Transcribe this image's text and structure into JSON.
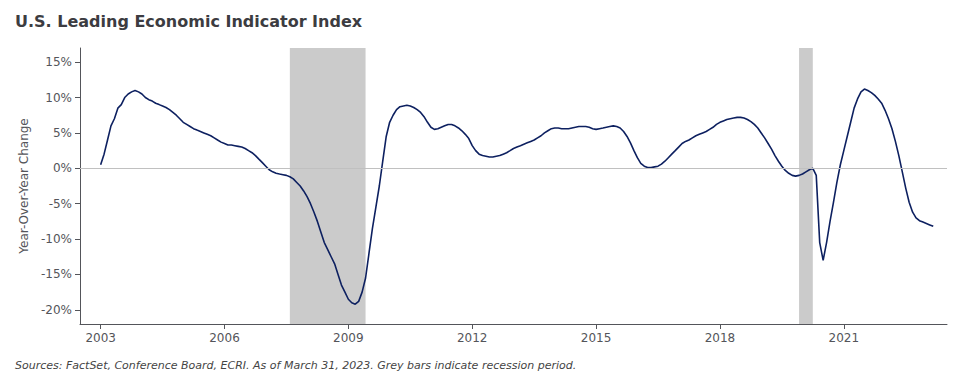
{
  "chart_data": {
    "type": "line",
    "title": "U.S. Leading Economic Indicator Index",
    "ylabel": "Year-Over-Year Change",
    "source": "Sources: FactSet, Conference Board, ECRI. As of March 31, 2023. Grey bars indicate recession period.",
    "color": "#0d2060",
    "grid": false,
    "xlim": [
      2002.5,
      2023.5
    ],
    "xticks": [
      2003,
      2006,
      2009,
      2012,
      2015,
      2018,
      2021
    ],
    "ylim": [
      -0.22,
      0.17
    ],
    "yticks": [
      {
        "value": -0.2,
        "label": "-20%"
      },
      {
        "value": -0.15,
        "label": "-15%"
      },
      {
        "value": -0.1,
        "label": "-10%"
      },
      {
        "value": -0.05,
        "label": "-5%"
      },
      {
        "value": 0.0,
        "label": "0%"
      },
      {
        "value": 0.05,
        "label": "5%"
      },
      {
        "value": 0.1,
        "label": "10%"
      },
      {
        "value": 0.15,
        "label": "15%"
      }
    ],
    "recession_periods": [
      [
        2007.583,
        2009.417
      ],
      [
        2019.917,
        2020.25
      ]
    ],
    "recession_color": "#a0a0a0",
    "reference_line": {
      "value": 0,
      "color": "#c0c0c0"
    },
    "x": [
      2003.0,
      2003.083,
      2003.167,
      2003.25,
      2003.333,
      2003.417,
      2003.5,
      2003.583,
      2003.667,
      2003.75,
      2003.833,
      2003.917,
      2004.0,
      2004.083,
      2004.167,
      2004.25,
      2004.333,
      2004.417,
      2004.5,
      2004.583,
      2004.667,
      2004.75,
      2004.833,
      2004.917,
      2005.0,
      2005.083,
      2005.167,
      2005.25,
      2005.333,
      2005.417,
      2005.5,
      2005.583,
      2005.667,
      2005.75,
      2005.833,
      2005.917,
      2006.0,
      2006.083,
      2006.167,
      2006.25,
      2006.333,
      2006.417,
      2006.5,
      2006.583,
      2006.667,
      2006.75,
      2006.833,
      2006.917,
      2007.0,
      2007.083,
      2007.167,
      2007.25,
      2007.333,
      2007.417,
      2007.5,
      2007.583,
      2007.667,
      2007.75,
      2007.833,
      2007.917,
      2008.0,
      2008.083,
      2008.167,
      2008.25,
      2008.333,
      2008.417,
      2008.5,
      2008.583,
      2008.667,
      2008.75,
      2008.833,
      2008.917,
      2009.0,
      2009.083,
      2009.167,
      2009.25,
      2009.333,
      2009.417,
      2009.5,
      2009.583,
      2009.667,
      2009.75,
      2009.833,
      2009.917,
      2010.0,
      2010.083,
      2010.167,
      2010.25,
      2010.333,
      2010.417,
      2010.5,
      2010.583,
      2010.667,
      2010.75,
      2010.833,
      2010.917,
      2011.0,
      2011.083,
      2011.167,
      2011.25,
      2011.333,
      2011.417,
      2011.5,
      2011.583,
      2011.667,
      2011.75,
      2011.833,
      2011.917,
      2012.0,
      2012.083,
      2012.167,
      2012.25,
      2012.333,
      2012.417,
      2012.5,
      2012.583,
      2012.667,
      2012.75,
      2012.833,
      2012.917,
      2013.0,
      2013.083,
      2013.167,
      2013.25,
      2013.333,
      2013.417,
      2013.5,
      2013.583,
      2013.667,
      2013.75,
      2013.833,
      2013.917,
      2014.0,
      2014.083,
      2014.167,
      2014.25,
      2014.333,
      2014.417,
      2014.5,
      2014.583,
      2014.667,
      2014.75,
      2014.833,
      2014.917,
      2015.0,
      2015.083,
      2015.167,
      2015.25,
      2015.333,
      2015.417,
      2015.5,
      2015.583,
      2015.667,
      2015.75,
      2015.833,
      2015.917,
      2016.0,
      2016.083,
      2016.167,
      2016.25,
      2016.333,
      2016.417,
      2016.5,
      2016.583,
      2016.667,
      2016.75,
      2016.833,
      2016.917,
      2017.0,
      2017.083,
      2017.167,
      2017.25,
      2017.333,
      2017.417,
      2017.5,
      2017.583,
      2017.667,
      2017.75,
      2017.833,
      2017.917,
      2018.0,
      2018.083,
      2018.167,
      2018.25,
      2018.333,
      2018.417,
      2018.5,
      2018.583,
      2018.667,
      2018.75,
      2018.833,
      2018.917,
      2019.0,
      2019.083,
      2019.167,
      2019.25,
      2019.333,
      2019.417,
      2019.5,
      2019.583,
      2019.667,
      2019.75,
      2019.833,
      2019.917,
      2020.0,
      2020.083,
      2020.167,
      2020.25,
      2020.333,
      2020.417,
      2020.5,
      2020.583,
      2020.667,
      2020.75,
      2020.833,
      2020.917,
      2021.0,
      2021.083,
      2021.167,
      2021.25,
      2021.333,
      2021.417,
      2021.5,
      2021.583,
      2021.667,
      2021.75,
      2021.833,
      2021.917,
      2022.0,
      2022.083,
      2022.167,
      2022.25,
      2022.333,
      2022.417,
      2022.5,
      2022.583,
      2022.667,
      2022.75,
      2022.833,
      2022.917,
      2023.0,
      2023.083,
      2023.167
    ],
    "values": [
      0.005,
      0.02,
      0.04,
      0.06,
      0.07,
      0.085,
      0.09,
      0.1,
      0.105,
      0.108,
      0.11,
      0.108,
      0.105,
      0.1,
      0.097,
      0.095,
      0.092,
      0.09,
      0.088,
      0.086,
      0.083,
      0.079,
      0.075,
      0.07,
      0.065,
      0.062,
      0.059,
      0.056,
      0.054,
      0.052,
      0.05,
      0.048,
      0.046,
      0.043,
      0.04,
      0.037,
      0.035,
      0.033,
      0.033,
      0.032,
      0.031,
      0.03,
      0.028,
      0.025,
      0.022,
      0.018,
      0.013,
      0.008,
      0.003,
      -0.002,
      -0.005,
      -0.007,
      -0.008,
      -0.009,
      -0.01,
      -0.012,
      -0.015,
      -0.02,
      -0.025,
      -0.032,
      -0.04,
      -0.05,
      -0.062,
      -0.075,
      -0.09,
      -0.105,
      -0.115,
      -0.125,
      -0.135,
      -0.15,
      -0.165,
      -0.175,
      -0.185,
      -0.19,
      -0.192,
      -0.188,
      -0.175,
      -0.155,
      -0.12,
      -0.085,
      -0.055,
      -0.025,
      0.01,
      0.045,
      0.065,
      0.075,
      0.083,
      0.087,
      0.088,
      0.089,
      0.088,
      0.086,
      0.083,
      0.079,
      0.073,
      0.065,
      0.058,
      0.055,
      0.056,
      0.058,
      0.06,
      0.062,
      0.062,
      0.06,
      0.057,
      0.053,
      0.048,
      0.042,
      0.032,
      0.025,
      0.02,
      0.018,
      0.017,
      0.016,
      0.016,
      0.017,
      0.018,
      0.02,
      0.022,
      0.025,
      0.028,
      0.03,
      0.032,
      0.034,
      0.036,
      0.038,
      0.04,
      0.043,
      0.046,
      0.05,
      0.053,
      0.056,
      0.057,
      0.057,
      0.056,
      0.056,
      0.056,
      0.057,
      0.058,
      0.059,
      0.059,
      0.059,
      0.058,
      0.056,
      0.055,
      0.056,
      0.057,
      0.058,
      0.059,
      0.06,
      0.059,
      0.057,
      0.052,
      0.045,
      0.036,
      0.025,
      0.015,
      0.007,
      0.003,
      0.001,
      0.001,
      0.002,
      0.003,
      0.006,
      0.01,
      0.015,
      0.02,
      0.025,
      0.03,
      0.035,
      0.038,
      0.04,
      0.043,
      0.046,
      0.048,
      0.05,
      0.052,
      0.055,
      0.058,
      0.062,
      0.065,
      0.067,
      0.069,
      0.07,
      0.071,
      0.072,
      0.072,
      0.071,
      0.069,
      0.066,
      0.062,
      0.057,
      0.05,
      0.043,
      0.035,
      0.027,
      0.018,
      0.01,
      0.003,
      -0.003,
      -0.007,
      -0.01,
      -0.011,
      -0.01,
      -0.008,
      -0.005,
      -0.002,
      0.0,
      -0.01,
      -0.105,
      -0.13,
      -0.105,
      -0.075,
      -0.048,
      -0.02,
      0.005,
      0.025,
      0.045,
      0.065,
      0.085,
      0.098,
      0.108,
      0.112,
      0.11,
      0.107,
      0.103,
      0.098,
      0.092,
      0.082,
      0.07,
      0.056,
      0.038,
      0.018,
      -0.005,
      -0.028,
      -0.048,
      -0.062,
      -0.07,
      -0.074,
      -0.076,
      -0.078,
      -0.08,
      -0.082
    ]
  }
}
